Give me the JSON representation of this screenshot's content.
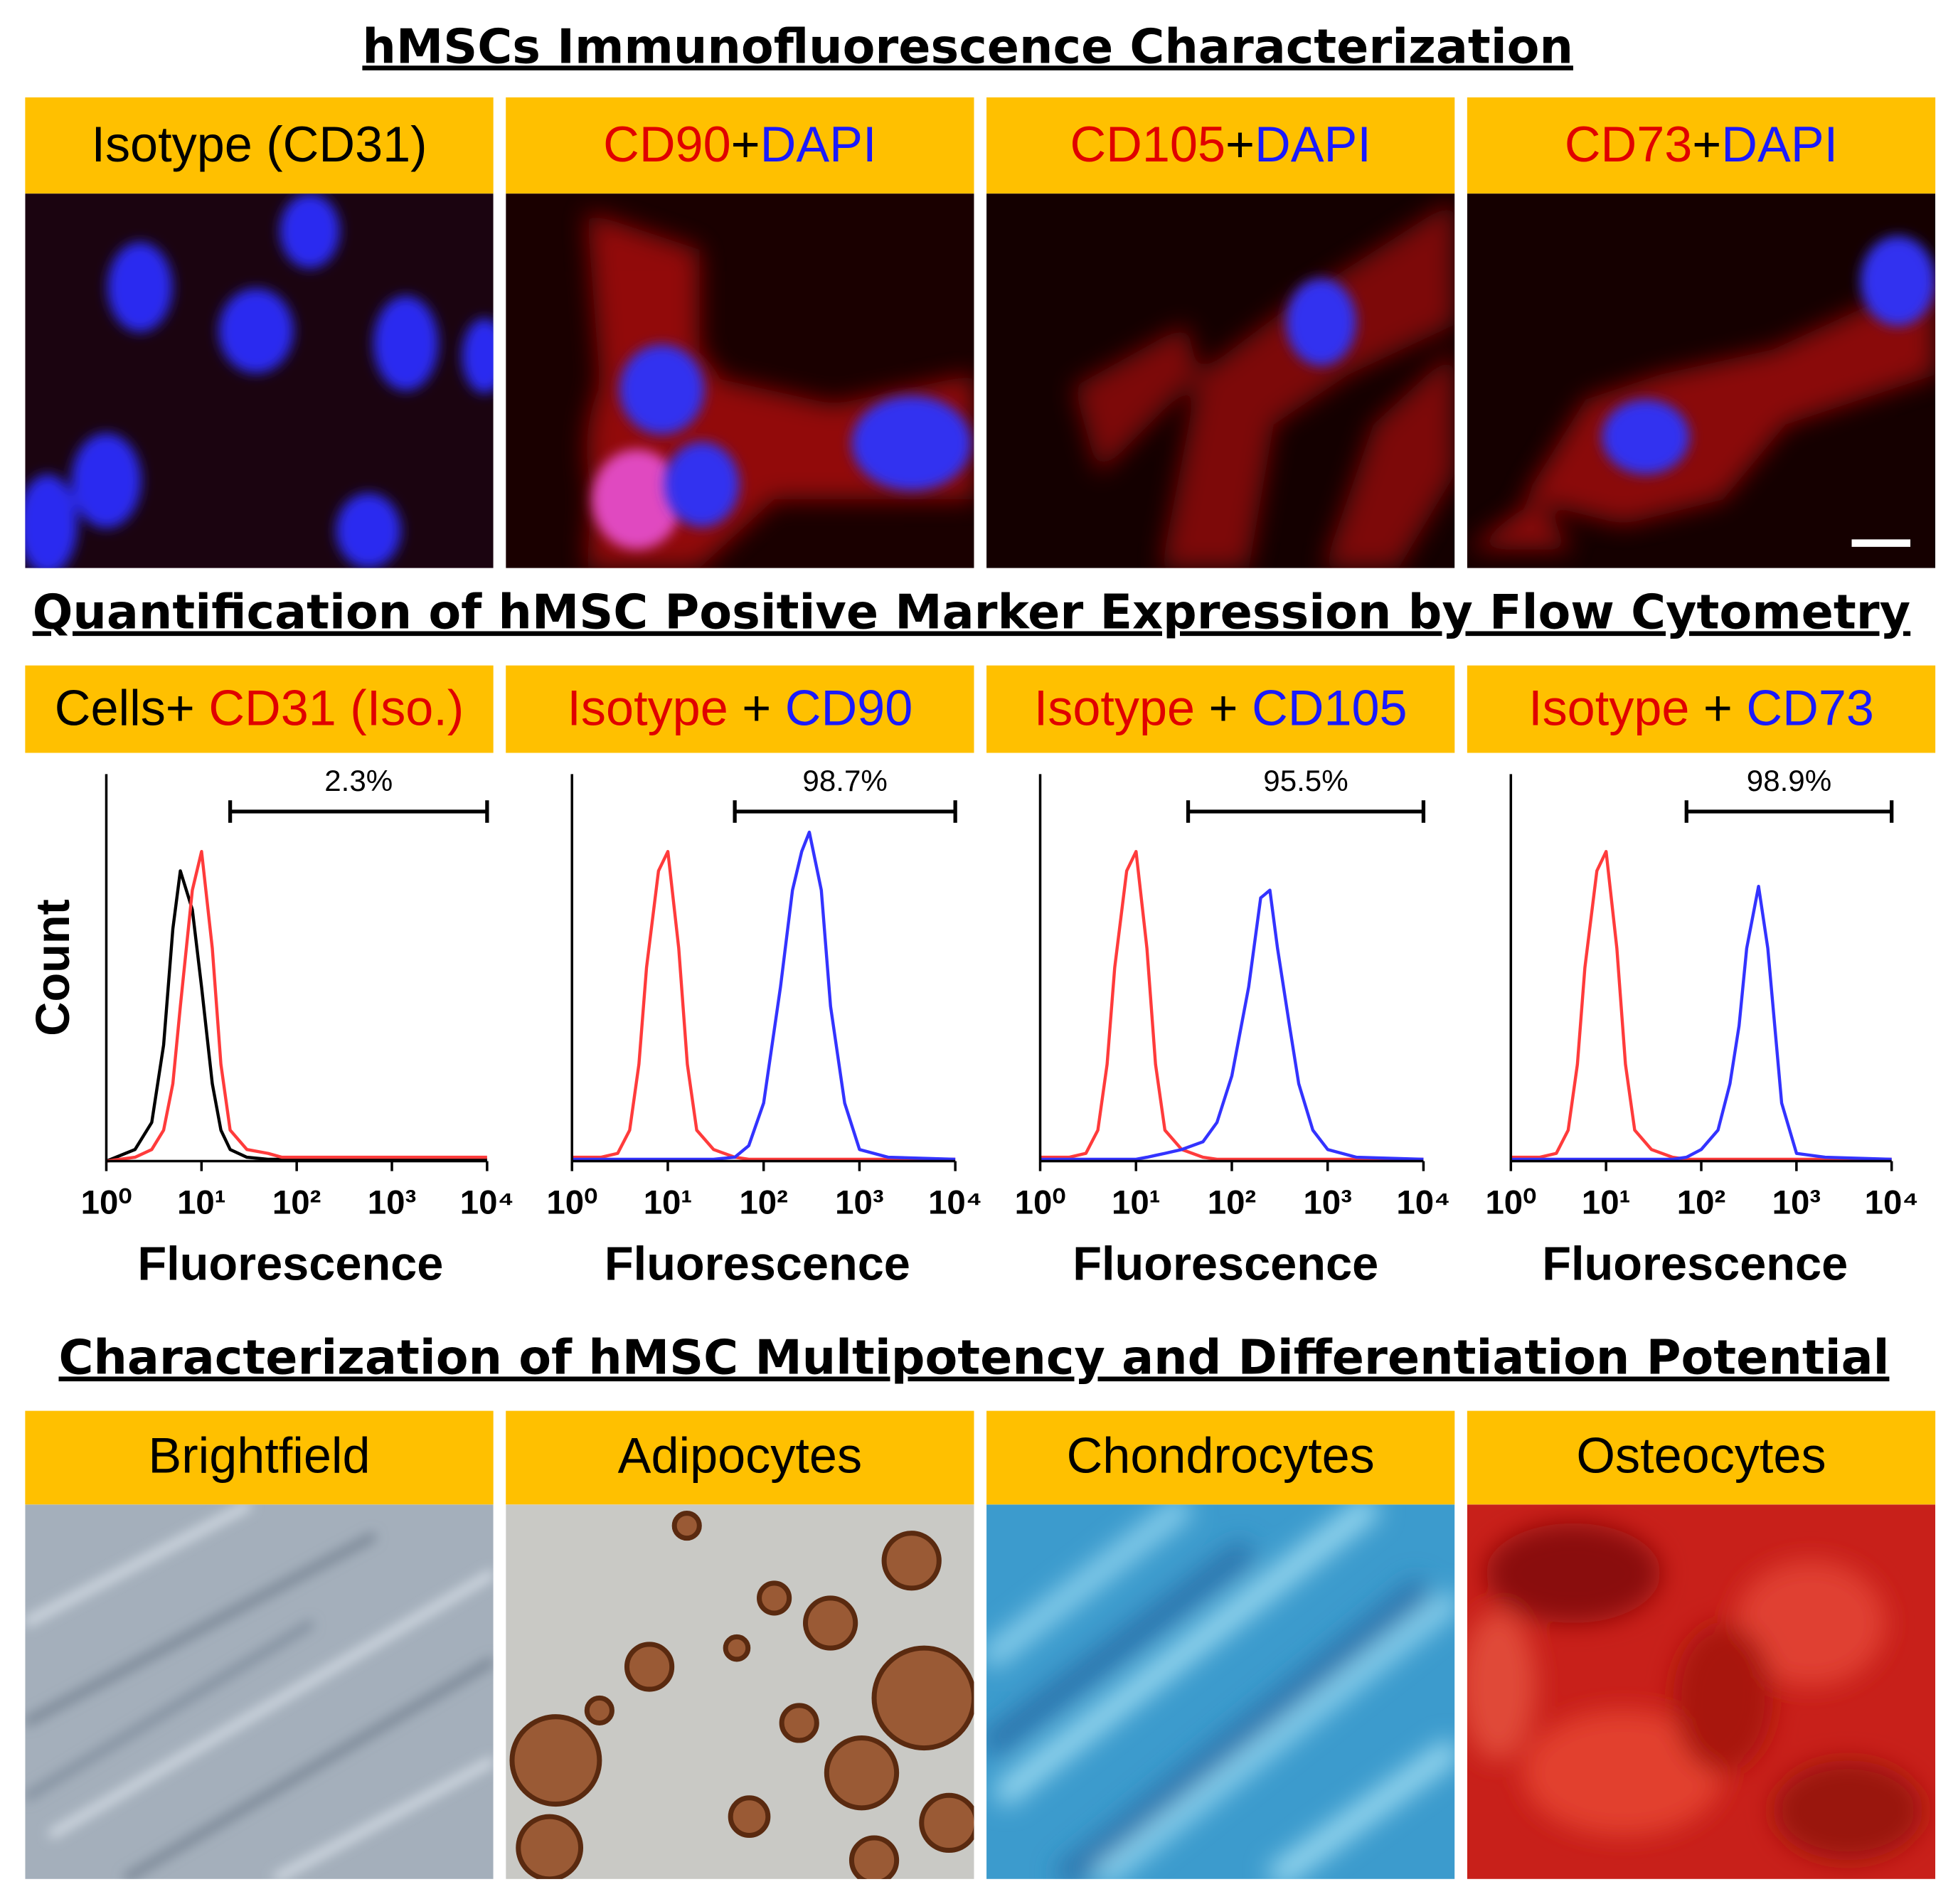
{
  "titles": [
    "hMSCs Immunofluorescence Characterization",
    "Quantification of hMSC Positive Marker Expression by Flow Cytometry",
    "Characterization of hMSC Multipotency and Differentiation Potential"
  ],
  "if_headers": [
    [
      {
        "text": "Isotype (CD31)",
        "color": "#000000"
      }
    ],
    [
      {
        "text": "CD90",
        "color": "#e00000"
      },
      {
        "text": "+",
        "color": "#000000"
      },
      {
        "text": "DAPI",
        "color": "#1a1aff"
      }
    ],
    [
      {
        "text": "CD105",
        "color": "#e00000"
      },
      {
        "text": "+",
        "color": "#000000"
      },
      {
        "text": "DAPI",
        "color": "#1a1aff"
      }
    ],
    [
      {
        "text": "CD73",
        "color": "#e00000"
      },
      {
        "text": "+",
        "color": "#000000"
      },
      {
        "text": "DAPI",
        "color": "#1a1aff"
      }
    ]
  ],
  "flow_headers": [
    [
      {
        "text": "Cells+ ",
        "color": "#000000"
      },
      {
        "text": "CD31 (Iso.)",
        "color": "#e00000"
      }
    ],
    [
      {
        "text": "Isotype",
        "color": "#e00000"
      },
      {
        "text": " + ",
        "color": "#000000"
      },
      {
        "text": "CD90",
        "color": "#1a1aff"
      }
    ],
    [
      {
        "text": "Isotype",
        "color": "#e00000"
      },
      {
        "text": " + ",
        "color": "#000000"
      },
      {
        "text": "CD105",
        "color": "#1a1aff"
      }
    ],
    [
      {
        "text": "Isotype",
        "color": "#e00000"
      },
      {
        "text": " + ",
        "color": "#000000"
      },
      {
        "text": "CD73",
        "color": "#1a1aff"
      }
    ]
  ],
  "diff_headers": [
    "Brightfield",
    "Adipocytes",
    "Chondrocytes",
    "Osteocytes"
  ],
  "chart_data": [
    {
      "type": "line",
      "log_x": true,
      "y_label": "Count",
      "x_label": "Fluorescence",
      "x": [
        1,
        2,
        3,
        4,
        5,
        6,
        8,
        10,
        13,
        16,
        20,
        30,
        50,
        70,
        100,
        150,
        200,
        250,
        300,
        400,
        500,
        700,
        1000,
        2000,
        10000
      ],
      "xlim": [
        1,
        10000
      ],
      "ylim": [
        0,
        100
      ],
      "xticks": [
        {
          "value": 1,
          "label": "10⁰"
        },
        {
          "value": 10,
          "label": "10¹"
        },
        {
          "value": 100,
          "label": "10²"
        },
        {
          "value": 1000,
          "label": "10³"
        },
        {
          "value": 10000,
          "label": "10⁴"
        }
      ],
      "series": [
        {
          "color": "#000000",
          "values": [
            0,
            3,
            10,
            30,
            60,
            75,
            65,
            45,
            20,
            8,
            3,
            1,
            0.5,
            0.5,
            0.5,
            0.5,
            0.5,
            0.5,
            0.5,
            0.5,
            0.5,
            0.5,
            0.5,
            0.5,
            0.5
          ]
        },
        {
          "color": "#ff3b3b",
          "values": [
            0,
            1,
            3,
            8,
            20,
            40,
            70,
            80,
            55,
            25,
            8,
            3,
            2,
            1,
            1,
            1,
            1,
            1,
            1,
            1,
            1,
            1,
            1,
            1,
            1
          ]
        }
      ],
      "gate": [
        20,
        10000
      ],
      "value": 2.3,
      "value_label": "2.3%"
    },
    {
      "type": "line",
      "log_x": true,
      "x_label": "Fluorescence",
      "x": [
        1,
        2,
        3,
        4,
        5,
        6,
        8,
        10,
        13,
        16,
        20,
        30,
        50,
        70,
        100,
        150,
        200,
        250,
        300,
        400,
        500,
        700,
        1000,
        2000,
        10000
      ],
      "xlim": [
        1,
        10000
      ],
      "ylim": [
        0,
        100
      ],
      "xticks": [
        {
          "value": 1,
          "label": "10⁰"
        },
        {
          "value": 10,
          "label": "10¹"
        },
        {
          "value": 100,
          "label": "10²"
        },
        {
          "value": 1000,
          "label": "10³"
        },
        {
          "value": 10000,
          "label": "10⁴"
        }
      ],
      "series": [
        {
          "color": "#ff3b3b",
          "values": [
            1,
            1,
            2,
            8,
            25,
            50,
            75,
            80,
            55,
            25,
            8,
            3,
            1,
            0.5,
            0.5,
            0.5,
            0.5,
            0.5,
            0.5,
            0.5,
            0.5,
            0.5,
            0.5,
            0.5,
            0.5
          ]
        },
        {
          "color": "#3333ff",
          "values": [
            0.5,
            0.5,
            0.5,
            0.5,
            0.5,
            0.5,
            0.5,
            0.5,
            0.5,
            0.5,
            0.5,
            0.5,
            1,
            4,
            15,
            45,
            70,
            80,
            85,
            70,
            40,
            15,
            3,
            1,
            0.5
          ]
        }
      ],
      "gate": [
        50,
        10000
      ],
      "value": 98.7,
      "value_label": "98.7%"
    },
    {
      "type": "line",
      "log_x": true,
      "x_label": "Fluorescence",
      "x": [
        1,
        2,
        3,
        4,
        5,
        6,
        8,
        10,
        13,
        16,
        20,
        30,
        50,
        70,
        100,
        150,
        200,
        250,
        300,
        400,
        500,
        700,
        1000,
        2000,
        10000
      ],
      "xlim": [
        1,
        10000
      ],
      "ylim": [
        0,
        100
      ],
      "xticks": [
        {
          "value": 1,
          "label": "10⁰"
        },
        {
          "value": 10,
          "label": "10¹"
        },
        {
          "value": 100,
          "label": "10²"
        },
        {
          "value": 1000,
          "label": "10³"
        },
        {
          "value": 10000,
          "label": "10⁴"
        }
      ],
      "series": [
        {
          "color": "#ff3b3b",
          "values": [
            1,
            1,
            2,
            8,
            25,
            50,
            75,
            80,
            55,
            25,
            8,
            3,
            1,
            0.5,
            0.5,
            0.5,
            0.5,
            0.5,
            0.5,
            0.5,
            0.5,
            0.5,
            0.5,
            0.5,
            0.5
          ]
        },
        {
          "color": "#3333ff",
          "values": [
            0.5,
            0.5,
            0.5,
            0.5,
            0.5,
            0.5,
            0.5,
            0.5,
            1,
            1.5,
            2,
            3,
            5,
            10,
            22,
            45,
            68,
            70,
            55,
            35,
            20,
            8,
            3,
            1,
            0.5
          ]
        }
      ],
      "gate": [
        35,
        10000
      ],
      "value": 95.5,
      "value_label": "95.5%"
    },
    {
      "type": "line",
      "log_x": true,
      "x_label": "Fluorescence",
      "x": [
        1,
        2,
        3,
        4,
        5,
        6,
        8,
        10,
        13,
        16,
        20,
        30,
        50,
        70,
        100,
        150,
        200,
        250,
        300,
        400,
        500,
        700,
        1000,
        2000,
        10000
      ],
      "xlim": [
        1,
        10000
      ],
      "ylim": [
        0,
        100
      ],
      "xticks": [
        {
          "value": 1,
          "label": "10⁰"
        },
        {
          "value": 10,
          "label": "10¹"
        },
        {
          "value": 100,
          "label": "10²"
        },
        {
          "value": 1000,
          "label": "10³"
        },
        {
          "value": 10000,
          "label": "10⁴"
        }
      ],
      "series": [
        {
          "color": "#ff3b3b",
          "values": [
            1,
            1,
            2,
            8,
            25,
            50,
            75,
            80,
            55,
            25,
            8,
            3,
            1,
            0.5,
            0.5,
            0.5,
            0.5,
            0.5,
            0.5,
            0.5,
            0.5,
            0.5,
            0.5,
            0.5,
            0.5
          ]
        },
        {
          "color": "#3333ff",
          "values": [
            0.5,
            0.5,
            0.5,
            0.5,
            0.5,
            0.5,
            0.5,
            0.5,
            0.5,
            0.5,
            0.5,
            0.5,
            0.5,
            1,
            3,
            8,
            20,
            35,
            55,
            71,
            55,
            15,
            2,
            1,
            0.5
          ]
        }
      ],
      "gate": [
        70,
        10000
      ],
      "value": 98.9,
      "value_label": "98.9%"
    }
  ]
}
